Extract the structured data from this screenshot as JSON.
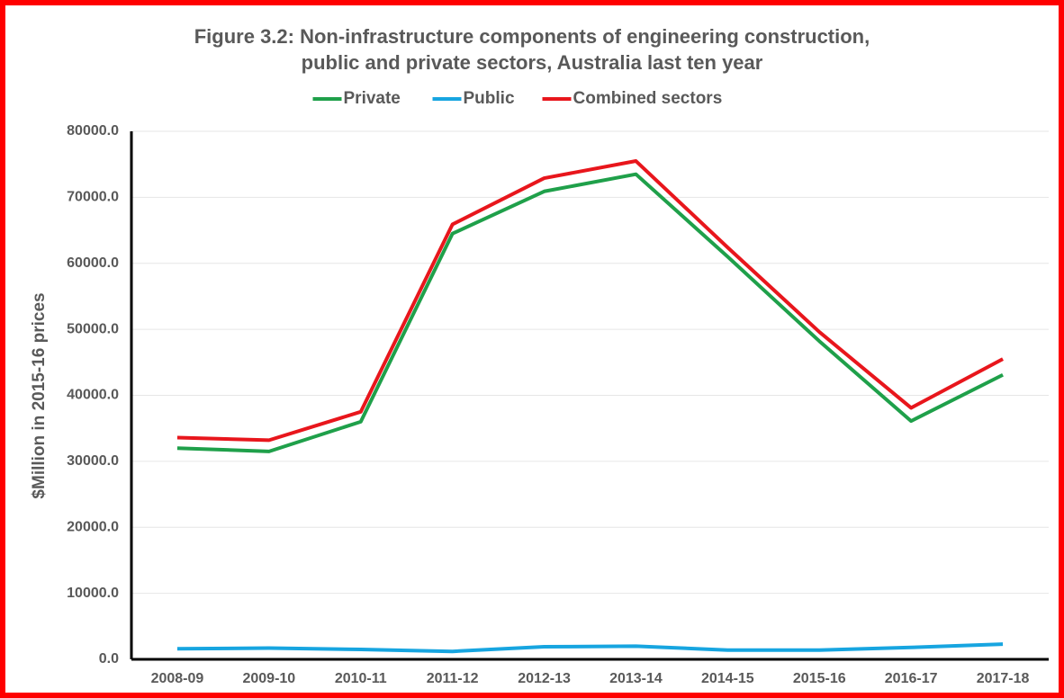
{
  "chart_data": {
    "type": "line",
    "title": [
      "Figure 3.2: Non-infrastructure components of engineering construction,",
      "public and private sectors, Australia last ten year"
    ],
    "y_label": "$Million in 2015-16 prices",
    "categories": [
      "2008-09",
      "2009-10",
      "2010-11",
      "2011-12",
      "2012-13",
      "2013-14",
      "2014-15",
      "2015-16",
      "2016-17",
      "2017-18"
    ],
    "series": [
      {
        "name": "Private",
        "color": "#1fa04a",
        "values": [
          32000,
          31500,
          36000,
          64500,
          70900,
          73500,
          61000,
          48200,
          36100,
          43100
        ]
      },
      {
        "name": "Public",
        "color": "#17a5e0",
        "values": [
          1600,
          1700,
          1500,
          1200,
          1900,
          2000,
          1400,
          1400,
          1800,
          2300
        ]
      },
      {
        "name": "Combined sectors",
        "color": "#e8161c",
        "values": [
          33600,
          33200,
          37500,
          65900,
          72900,
          75500,
          62400,
          49600,
          38100,
          45500
        ]
      }
    ],
    "ylim": [
      0,
      80000
    ],
    "yticks": [
      {
        "value": 0,
        "label": "0.0"
      },
      {
        "value": 10000,
        "label": "10000.0"
      },
      {
        "value": 20000,
        "label": "20000.0"
      },
      {
        "value": 30000,
        "label": "30000.0"
      },
      {
        "value": 40000,
        "label": "40000.0"
      },
      {
        "value": 50000,
        "label": "50000.0"
      },
      {
        "value": 60000,
        "label": "60000.0"
      },
      {
        "value": 70000,
        "label": "70000.0"
      },
      {
        "value": 80000,
        "label": "80000.0"
      }
    ],
    "grid": true,
    "legend": "top"
  }
}
